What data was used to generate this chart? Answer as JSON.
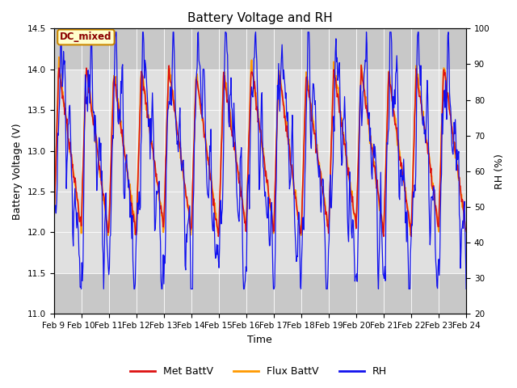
{
  "title": "Battery Voltage and RH",
  "xlabel": "Time",
  "ylabel_left": "Battery Voltage (V)",
  "ylabel_right": "RH (%)",
  "annotation": "DC_mixed",
  "annotation_color": "#8B0000",
  "annotation_bg": "#FFFFCC",
  "annotation_border": "#CC8800",
  "ylim_left": [
    11.0,
    14.5
  ],
  "ylim_right": [
    20,
    100
  ],
  "yticks_left": [
    11.0,
    11.5,
    12.0,
    12.5,
    13.0,
    13.5,
    14.0,
    14.5
  ],
  "yticks_right": [
    20,
    30,
    40,
    50,
    60,
    70,
    80,
    90,
    100
  ],
  "xtick_labels": [
    "Feb 9",
    "Feb 10",
    "Feb 11",
    "Feb 12",
    "Feb 13",
    "Feb 14",
    "Feb 15",
    "Feb 16",
    "Feb 17",
    "Feb 18",
    "Feb 19",
    "Feb 20",
    "Feb 21",
    "Feb 22",
    "Feb 23",
    "Feb 24"
  ],
  "color_met": "#DD1111",
  "color_flux": "#FF9900",
  "color_rh": "#1111EE",
  "legend_labels": [
    "Met BattV",
    "Flux BattV",
    "RH"
  ],
  "background_color": "#FFFFFF",
  "plot_bg_color": "#C8C8C8",
  "inner_bg_color": "#E0E0E0",
  "inner_bg_lo": 11.5,
  "inner_bg_hi": 14.0
}
